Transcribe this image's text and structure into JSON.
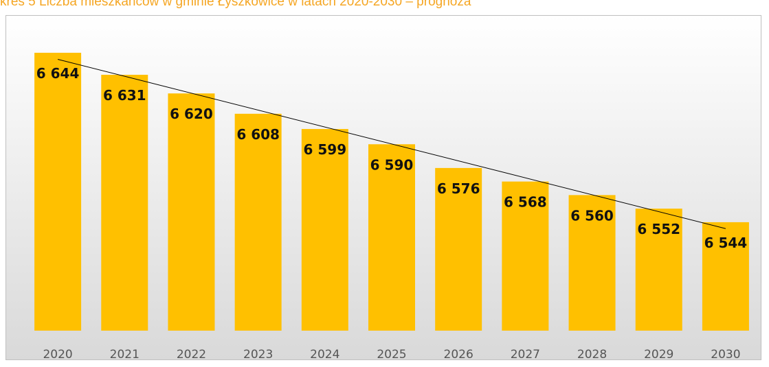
{
  "chart_data": {
    "type": "bar",
    "title": "kres 5 Liczba mieszkańców w gminie Łyszkowice w latach 2020-2030 – prognoza",
    "categories": [
      "2020",
      "2021",
      "2022",
      "2023",
      "2024",
      "2025",
      "2026",
      "2027",
      "2028",
      "2029",
      "2030"
    ],
    "values": [
      6644,
      6631,
      6620,
      6608,
      6599,
      6590,
      6576,
      6568,
      6560,
      6552,
      6544
    ],
    "value_labels": [
      "6 644",
      "6 631",
      "6 620",
      "6 608",
      "6 599",
      "6 590",
      "6 576",
      "6 568",
      "6 560",
      "6 552",
      "6 544"
    ],
    "color": "#ffc000",
    "ylim": [
      6480,
      6660
    ],
    "trendline": true
  }
}
